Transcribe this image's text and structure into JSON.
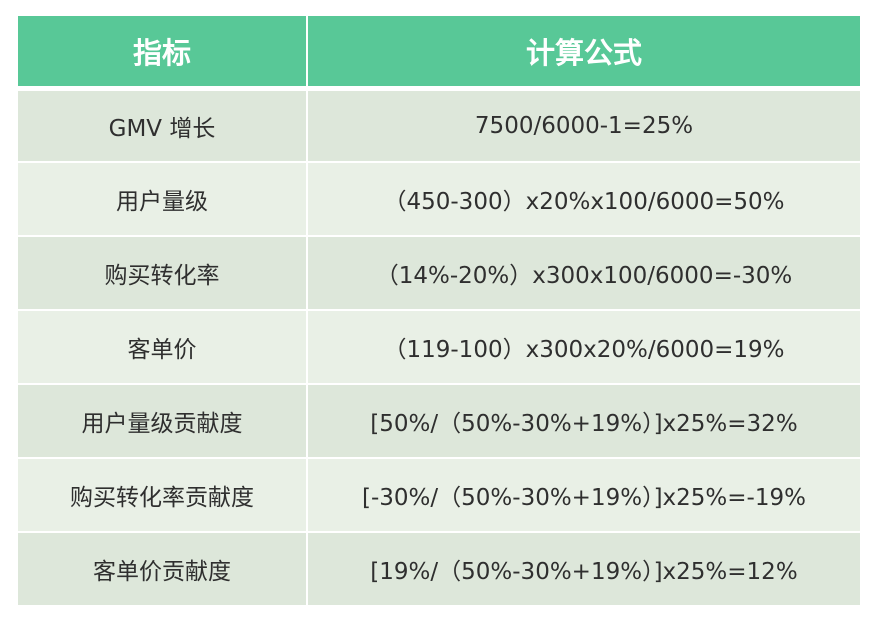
{
  "table": {
    "headers": [
      "指标",
      "计算公式"
    ],
    "rows": [
      {
        "metric": "GMV 增长",
        "formula": "7500/6000-1=25%"
      },
      {
        "metric": "用户量级",
        "formula": "（450-300）x20%x100/6000=50%"
      },
      {
        "metric": "购买转化率",
        "formula": "（14%-20%）x300x100/6000=-30%"
      },
      {
        "metric": "客单价",
        "formula": "（119-100）x300x20%/6000=19%"
      },
      {
        "metric": "用户量级贡献度",
        "formula": "[50%/（50%-30%+19%）]x25%=32%"
      },
      {
        "metric": "购买转化率贡献度",
        "formula": "[-30%/（50%-30%+19%）]x25%=-19%"
      },
      {
        "metric": "客单价贡献度",
        "formula": "[19%/（50%-30%+19%）]x25%=12%"
      }
    ]
  },
  "colors": {
    "header_bg": "#58c897",
    "row_bg_a": "#dde7da",
    "row_bg_b": "#e9f0e6"
  }
}
